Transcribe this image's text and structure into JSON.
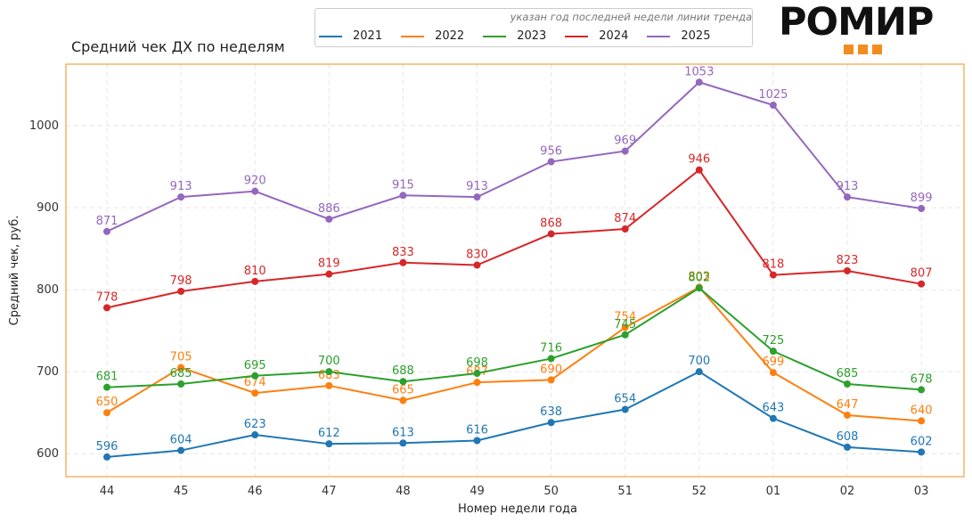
{
  "header": {
    "title": "Средний чек ДХ по неделям"
  },
  "legend": {
    "note": "указан год последней недели линии тренда"
  },
  "brand": {
    "logo_text": "РОМИР",
    "accent_color": "#f28c1f"
  },
  "chart_data": {
    "type": "line",
    "title": "Средний чек ДХ по неделям",
    "xlabel": "Номер недели года",
    "ylabel": "Средний чек, руб.",
    "categories": [
      "44",
      "45",
      "46",
      "47",
      "48",
      "49",
      "50",
      "51",
      "52",
      "01",
      "02",
      "03"
    ],
    "y_ticks": [
      600,
      700,
      800,
      900,
      1000
    ],
    "ylim": [
      572,
      1075
    ],
    "grid": true,
    "legend_position": "top",
    "series": [
      {
        "name": "2021",
        "color": "#1f77b4",
        "values": [
          596,
          604,
          623,
          612,
          613,
          616,
          638,
          654,
          700,
          643,
          608,
          602
        ]
      },
      {
        "name": "2022",
        "color": "#ff7f0e",
        "values": [
          650,
          705,
          674,
          683,
          665,
          687,
          690,
          754,
          803,
          699,
          647,
          640
        ]
      },
      {
        "name": "2023",
        "color": "#2ca02c",
        "values": [
          681,
          685,
          695,
          700,
          688,
          698,
          716,
          745,
          802,
          725,
          685,
          678
        ]
      },
      {
        "name": "2024",
        "color": "#d62728",
        "values": [
          778,
          798,
          810,
          819,
          833,
          830,
          868,
          874,
          946,
          818,
          823,
          807
        ]
      },
      {
        "name": "2025",
        "color": "#9467bd",
        "values": [
          871,
          913,
          920,
          886,
          915,
          913,
          956,
          969,
          1053,
          1025,
          913,
          899
        ]
      }
    ]
  }
}
